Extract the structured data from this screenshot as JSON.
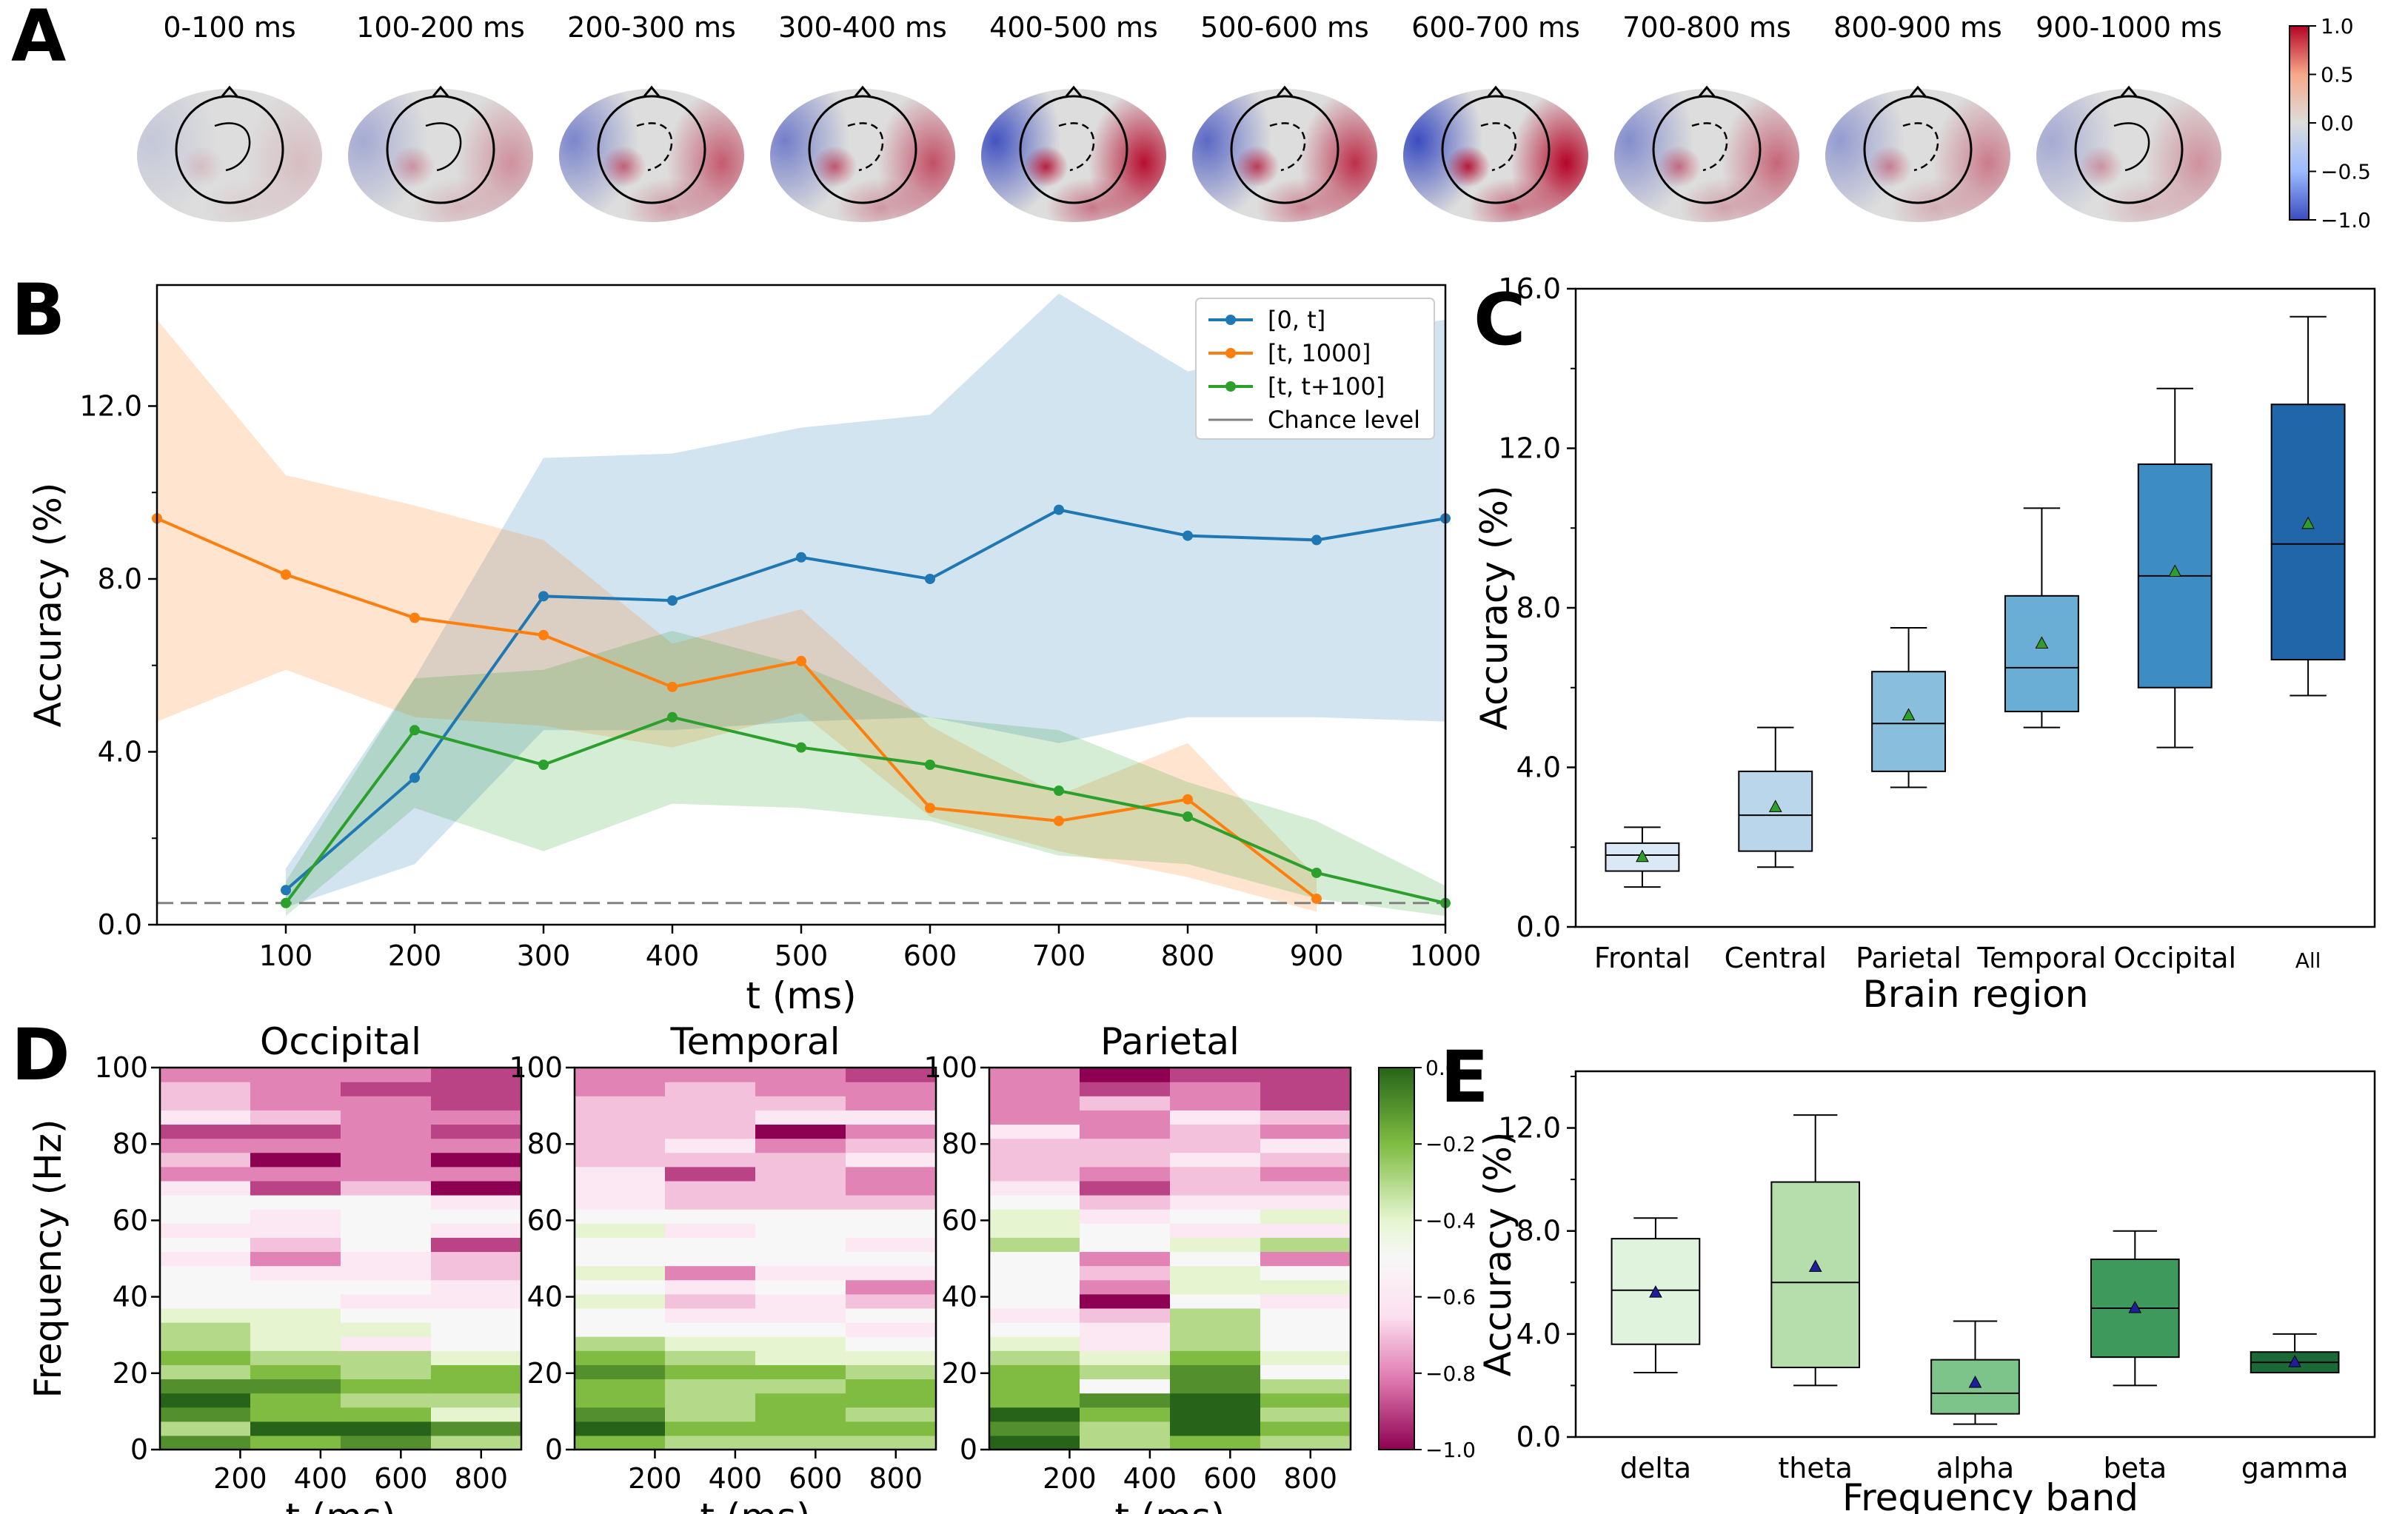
{
  "panel_labels": [
    "A",
    "B",
    "C",
    "D",
    "E"
  ],
  "chart_data": [
    {
      "panel": "A",
      "type": "heatmap",
      "title_list": [
        "0-100 ms",
        "100-200 ms",
        "200-300 ms",
        "300-400 ms",
        "400-500 ms",
        "500-600 ms",
        "600-700 ms",
        "700-800 ms",
        "800-900 ms",
        "900-1000 ms"
      ],
      "colorbar_ticks": [
        "1.0",
        "0.5",
        "0.0",
        "−0.5",
        "−1.0"
      ],
      "colorbar_range": [
        -1.0,
        1.0
      ],
      "intensity": [
        0.15,
        0.35,
        0.6,
        0.65,
        0.95,
        0.8,
        1.0,
        0.55,
        0.45,
        0.35
      ]
    },
    {
      "panel": "B",
      "type": "line",
      "xlabel": "t (ms)",
      "ylabel": "Accuracy (%)",
      "xlim": [
        0,
        1000
      ],
      "ylim": [
        0,
        14.8
      ],
      "x_ticks": [
        "100",
        "200",
        "300",
        "400",
        "500",
        "600",
        "700",
        "800",
        "900",
        "1000"
      ],
      "y_ticks": [
        "0.0",
        "4.0",
        "8.0",
        "12.0"
      ],
      "chance_level": 0.5,
      "series": [
        {
          "name": "[0, t]",
          "color": "#1f77b4",
          "x": [
            100,
            200,
            300,
            400,
            500,
            600,
            700,
            800,
            900,
            1000
          ],
          "values": [
            0.8,
            3.4,
            7.6,
            7.5,
            8.5,
            8.0,
            9.6,
            9.0,
            8.9,
            9.4
          ],
          "lower": [
            0.4,
            1.4,
            4.5,
            4.5,
            4.7,
            4.8,
            4.2,
            4.8,
            4.8,
            4.7
          ],
          "upper": [
            1.3,
            5.7,
            10.8,
            10.9,
            11.5,
            11.8,
            14.6,
            12.8,
            13.5,
            14.0
          ]
        },
        {
          "name": "[t, 1000]",
          "color": "#ff7f0e",
          "x": [
            0,
            100,
            200,
            300,
            400,
            500,
            600,
            700,
            800,
            900
          ],
          "values": [
            9.4,
            8.1,
            7.1,
            6.7,
            5.5,
            6.1,
            2.7,
            2.4,
            2.9,
            0.6
          ],
          "lower": [
            4.7,
            5.9,
            4.8,
            4.6,
            4.1,
            4.9,
            2.5,
            1.7,
            1.1,
            0.3
          ],
          "upper": [
            14.0,
            10.4,
            9.7,
            8.9,
            6.5,
            7.3,
            4.6,
            3.0,
            4.2,
            1.1
          ]
        },
        {
          "name": "[t, t+100]",
          "color": "#2ca02c",
          "x": [
            100,
            200,
            300,
            400,
            500,
            600,
            700,
            800,
            900,
            1000
          ],
          "values": [
            0.5,
            4.5,
            3.7,
            4.8,
            4.1,
            3.7,
            3.1,
            2.5,
            1.2,
            0.5
          ],
          "lower": [
            0.2,
            2.7,
            1.7,
            2.8,
            2.7,
            2.4,
            1.6,
            1.4,
            0.6,
            0.2
          ],
          "upper": [
            1.0,
            5.7,
            5.9,
            6.8,
            6.0,
            4.8,
            4.5,
            3.3,
            2.4,
            0.9
          ]
        }
      ],
      "legend": [
        "[0, t]",
        "[t, 1000]",
        "[t, t+100]",
        "Chance level"
      ]
    },
    {
      "panel": "C",
      "type": "box",
      "xlabel": "Brain region",
      "ylabel": "Accuracy (%)",
      "ylim": [
        0,
        16.0
      ],
      "y_ticks": [
        "0.0",
        "4.0",
        "8.0",
        "12.0",
        "16.0"
      ],
      "categories": [
        "Frontal",
        "Central",
        "Parietal",
        "Temporal",
        "Occipital",
        "All"
      ],
      "boxes": [
        {
          "whislo": 1.0,
          "q1": 1.4,
          "med": 1.8,
          "q3": 2.1,
          "whishi": 2.5,
          "mean": 1.75,
          "color": "#dbe9f6"
        },
        {
          "whislo": 1.5,
          "q1": 1.9,
          "med": 2.8,
          "q3": 3.9,
          "whishi": 5.0,
          "mean": 3.0,
          "color": "#bad6eb"
        },
        {
          "whislo": 3.5,
          "q1": 3.9,
          "med": 5.1,
          "q3": 6.4,
          "whishi": 7.5,
          "mean": 5.3,
          "color": "#89bedc"
        },
        {
          "whislo": 5.0,
          "q1": 5.4,
          "med": 6.5,
          "q3": 8.3,
          "whishi": 10.5,
          "mean": 7.1,
          "color": "#6aaed6"
        },
        {
          "whislo": 4.5,
          "q1": 6.0,
          "med": 8.8,
          "q3": 11.6,
          "whishi": 13.5,
          "mean": 8.9,
          "color": "#3d8dc4"
        },
        {
          "whislo": 5.8,
          "q1": 6.7,
          "med": 9.6,
          "q3": 13.1,
          "whishi": 15.3,
          "mean": 10.1,
          "color": "#2166a8"
        }
      ]
    },
    {
      "panel": "D",
      "type": "heatmap",
      "ylabel": "Frequency (Hz)",
      "xlabel": "t (ms)",
      "y_ticks": [
        "0",
        "20",
        "40",
        "60",
        "80",
        "100"
      ],
      "x_ticks": [
        "200",
        "400",
        "600",
        "800"
      ],
      "colorbar_ticks": [
        "0.0",
        "−0.2",
        "−0.4",
        "−0.6",
        "−0.8",
        "−1.0"
      ],
      "colorbar_range": [
        -1.0,
        0.0
      ],
      "subplots": [
        {
          "title": "Occipital",
          "values": [
            [
              -0.1,
              -0.2,
              -0.1,
              -0.3
            ],
            [
              -0.3,
              -0.0,
              -0.0,
              -0.1
            ],
            [
              -0.1,
              -0.2,
              -0.2,
              -0.4
            ],
            [
              -0.0,
              -0.2,
              -0.3,
              -0.3
            ],
            [
              -0.1,
              -0.1,
              -0.2,
              -0.2
            ],
            [
              -0.3,
              -0.2,
              -0.3,
              -0.2
            ],
            [
              -0.2,
              -0.3,
              -0.3,
              -0.4
            ],
            [
              -0.3,
              -0.4,
              -0.6,
              -0.5
            ],
            [
              -0.3,
              -0.4,
              -0.4,
              -0.5
            ],
            [
              -0.4,
              -0.4,
              -0.5,
              -0.5
            ],
            [
              -0.5,
              -0.5,
              -0.6,
              -0.6
            ],
            [
              -0.5,
              -0.5,
              -0.5,
              -0.6
            ],
            [
              -0.5,
              -0.6,
              -0.6,
              -0.7
            ],
            [
              -0.6,
              -0.8,
              -0.6,
              -0.7
            ],
            [
              -0.5,
              -0.7,
              -0.5,
              -0.9
            ],
            [
              -0.6,
              -0.6,
              -0.5,
              -0.6
            ],
            [
              -0.5,
              -0.6,
              -0.5,
              -0.5
            ],
            [
              -0.5,
              -0.5,
              -0.5,
              -0.6
            ],
            [
              -0.6,
              -0.9,
              -0.7,
              -1.0
            ],
            [
              -0.8,
              -0.8,
              -0.8,
              -0.8
            ],
            [
              -0.7,
              -1.0,
              -0.8,
              -1.0
            ],
            [
              -0.8,
              -0.8,
              -0.8,
              -0.8
            ],
            [
              -0.9,
              -0.9,
              -0.8,
              -0.9
            ],
            [
              -0.6,
              -0.7,
              -0.8,
              -0.8
            ],
            [
              -0.7,
              -0.8,
              -0.8,
              -0.9
            ],
            [
              -0.7,
              -0.8,
              -0.9,
              -0.9
            ],
            [
              -0.8,
              -0.8,
              -0.8,
              -0.9
            ]
          ]
        },
        {
          "title": "Temporal",
          "values": [
            [
              -0.2,
              -0.3,
              -0.3,
              -0.3
            ],
            [
              -0.0,
              -0.2,
              -0.2,
              -0.2
            ],
            [
              -0.1,
              -0.3,
              -0.2,
              -0.3
            ],
            [
              -0.2,
              -0.3,
              -0.2,
              -0.2
            ],
            [
              -0.2,
              -0.3,
              -0.3,
              -0.2
            ],
            [
              -0.1,
              -0.2,
              -0.2,
              -0.3
            ],
            [
              -0.2,
              -0.3,
              -0.4,
              -0.4
            ],
            [
              -0.3,
              -0.4,
              -0.4,
              -0.5
            ],
            [
              -0.5,
              -0.5,
              -0.5,
              -0.6
            ],
            [
              -0.5,
              -0.6,
              -0.6,
              -0.5
            ],
            [
              -0.4,
              -0.7,
              -0.6,
              -0.7
            ],
            [
              -0.5,
              -0.6,
              -0.5,
              -0.8
            ],
            [
              -0.4,
              -0.8,
              -0.6,
              -0.6
            ],
            [
              -0.5,
              -0.5,
              -0.5,
              -0.5
            ],
            [
              -0.5,
              -0.5,
              -0.5,
              -0.6
            ],
            [
              -0.4,
              -0.6,
              -0.5,
              -0.5
            ],
            [
              -0.5,
              -0.5,
              -0.5,
              -0.5
            ],
            [
              -0.6,
              -0.7,
              -0.7,
              -0.7
            ],
            [
              -0.6,
              -0.7,
              -0.7,
              -0.8
            ],
            [
              -0.6,
              -0.9,
              -0.7,
              -0.8
            ],
            [
              -0.7,
              -0.7,
              -0.7,
              -0.6
            ],
            [
              -0.7,
              -0.6,
              -0.8,
              -0.7
            ],
            [
              -0.7,
              -0.7,
              -1.0,
              -0.8
            ],
            [
              -0.7,
              -0.7,
              -0.6,
              -0.6
            ],
            [
              -0.7,
              -0.7,
              -0.7,
              -0.8
            ],
            [
              -0.8,
              -0.7,
              -0.8,
              -0.8
            ],
            [
              -0.8,
              -0.8,
              -0.8,
              -0.9
            ]
          ]
        },
        {
          "title": "Parietal",
          "values": [
            [
              -0.0,
              -0.3,
              -0.2,
              -0.3
            ],
            [
              -0.1,
              -0.3,
              -0.0,
              -0.2
            ],
            [
              -0.0,
              -0.2,
              -0.0,
              -0.3
            ],
            [
              -0.2,
              -0.1,
              -0.0,
              -0.2
            ],
            [
              -0.2,
              -0.5,
              -0.1,
              -0.3
            ],
            [
              -0.2,
              -0.3,
              -0.1,
              -0.5
            ],
            [
              -0.3,
              -0.4,
              -0.2,
              -0.4
            ],
            [
              -0.4,
              -0.6,
              -0.3,
              -0.5
            ],
            [
              -0.5,
              -0.6,
              -0.3,
              -0.5
            ],
            [
              -0.6,
              -0.7,
              -0.3,
              -0.5
            ],
            [
              -0.5,
              -1.0,
              -0.5,
              -0.6
            ],
            [
              -0.5,
              -0.8,
              -0.4,
              -0.4
            ],
            [
              -0.5,
              -0.7,
              -0.4,
              -0.5
            ],
            [
              -0.5,
              -0.8,
              -0.5,
              -0.8
            ],
            [
              -0.3,
              -0.5,
              -0.4,
              -0.3
            ],
            [
              -0.4,
              -0.5,
              -0.6,
              -0.6
            ],
            [
              -0.4,
              -0.6,
              -0.5,
              -0.4
            ],
            [
              -0.5,
              -0.7,
              -0.6,
              -0.6
            ],
            [
              -0.6,
              -0.9,
              -0.7,
              -0.7
            ],
            [
              -0.7,
              -0.8,
              -0.7,
              -0.8
            ],
            [
              -0.7,
              -0.7,
              -0.6,
              -0.7
            ],
            [
              -0.7,
              -0.7,
              -0.7,
              -0.6
            ],
            [
              -0.6,
              -0.8,
              -0.7,
              -0.8
            ],
            [
              -0.8,
              -0.8,
              -0.6,
              -0.7
            ],
            [
              -0.8,
              -0.7,
              -0.8,
              -0.9
            ],
            [
              -0.8,
              -0.9,
              -0.8,
              -0.9
            ],
            [
              -0.8,
              -1.0,
              -0.9,
              -0.9
            ]
          ]
        }
      ]
    },
    {
      "panel": "E",
      "type": "box",
      "xlabel": "Frequency band",
      "ylabel": "Accuracy (%)",
      "ylim": [
        0,
        14.2
      ],
      "y_ticks": [
        "0.0",
        "4.0",
        "8.0",
        "12.0"
      ],
      "categories": [
        "delta",
        "theta",
        "alpha",
        "beta",
        "gamma"
      ],
      "boxes": [
        {
          "whislo": 2.5,
          "q1": 3.6,
          "med": 5.7,
          "q3": 7.7,
          "whishi": 8.5,
          "mean": 5.6,
          "color": "#e0f3dc"
        },
        {
          "whislo": 2.0,
          "q1": 2.7,
          "med": 6.0,
          "q3": 9.9,
          "whishi": 12.5,
          "mean": 6.6,
          "color": "#b5deac"
        },
        {
          "whislo": 0.5,
          "q1": 0.9,
          "med": 1.7,
          "q3": 3.0,
          "whishi": 4.5,
          "mean": 2.1,
          "color": "#7cc48a"
        },
        {
          "whislo": 2.0,
          "q1": 3.1,
          "med": 5.0,
          "q3": 6.9,
          "whishi": 8.0,
          "mean": 5.0,
          "color": "#3e9a5c"
        },
        {
          "whislo": 2.5,
          "q1": 2.5,
          "med": 2.9,
          "q3": 3.3,
          "whishi": 4.0,
          "mean": 2.9,
          "color": "#1a6a38"
        }
      ]
    }
  ]
}
